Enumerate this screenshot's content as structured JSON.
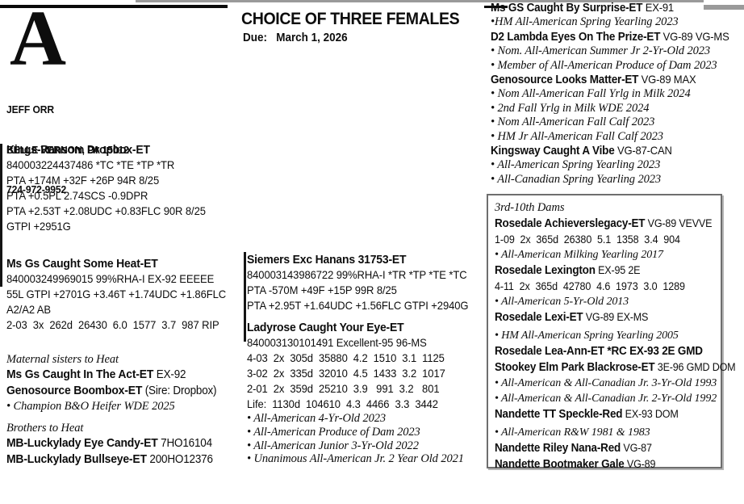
{
  "header": {
    "logo_letter": "A",
    "consignor": {
      "name": "JEFF ORR",
      "address": "BELLE VERNON, PA 15012",
      "phone": "724-972-9952"
    },
    "title": "CHOICE OF THREE FEMALES",
    "due": "Due:   March 1, 2026"
  },
  "left": {
    "sire": {
      "name": "Kings-Ransom Dropbox-ET",
      "lines": [
        "840003224437486 *TC *TE *TP *TR",
        "PTA +174M +32F +26P 94R 8/25",
        "PTA +0.5PL 2.74SCS -0.9DPR",
        "PTA +2.53T +2.08UDC +0.83FLC 90R 8/25",
        "GTPI +2951G"
      ]
    },
    "dam": {
      "name": "Ms Gs Caught Some Heat-ET",
      "lines": [
        "840003249969015 99%RHA-I EX-92 EEEEE",
        "55L GTPI +2701G +3.46T +1.74UDC +1.86FLC",
        "A2/A2 AB",
        "2-03  3x  262d  26430  6.0  1577  3.7  987 RIP"
      ]
    },
    "maternal": {
      "heading": "Maternal sisters to Heat",
      "entries": [
        {
          "name": "Ms Gs Caught In The Act-ET",
          "suffix": " EX-92"
        },
        {
          "name": "Genosource Boombox-ET",
          "suffix": " (Sire: Dropbox)"
        }
      ],
      "bullet": "• Champion B&O Heifer WDE 2025"
    },
    "brothers": {
      "heading": "Brothers to Heat",
      "entries": [
        {
          "name": "MB-Luckylady Eye Candy-ET",
          "suffix": " 7HO16104"
        },
        {
          "name": "MB-Luckylady Bullseye-ET",
          "suffix": " 200HO12376"
        }
      ]
    }
  },
  "middle": {
    "sire2": {
      "name": "Siemers Exc Hanans 31753-ET",
      "lines": [
        "840003143986722 99%RHA-I *TR *TP *TE *TC",
        "PTA -570M +49F +15P 99R 8/25",
        "PTA +2.95T +1.64UDC +1.56FLC GTPI +2940G"
      ]
    },
    "dam2": {
      "name": "Ladyrose Caught Your Eye-ET",
      "lines": [
        "840003130101491 Excellent-95 96-MS",
        "4-03  2x  305d  35880  4.2  1510  3.1  1125",
        "3-02  2x  335d  32010  4.5  1433  3.2  1017",
        "2-01  2x  359d  25210  3.9   991  3.2   801",
        "Life:  1130d  104610  4.3  4466  3.3  3442"
      ],
      "bullets": [
        "• All-American 4-Yr-Old 2023",
        "• All-American Produce of Dam 2023",
        "• All-American Junior 3-Yr-Old 2022",
        "• Unanimous All-American Jr. 2 Year Old 2021"
      ]
    }
  },
  "right": {
    "items": [
      {
        "type": "name",
        "name": "Ms GS Caught By Surprise-ET",
        "suffix": " EX-91"
      },
      {
        "type": "bullet",
        "text": "•HM All-American Spring Yearling 2023"
      },
      {
        "type": "name",
        "name": "D2 Lambda Eyes On The Prize-ET",
        "suffix": " VG-89 VG-MS"
      },
      {
        "type": "bullet",
        "text": "• Nom. All-American Summer Jr 2-Yr-Old 2023"
      },
      {
        "type": "bullet",
        "text": "• Member of All-American Produce of Dam 2023"
      },
      {
        "type": "name",
        "name": "Genosource Looks Matter-ET",
        "suffix": " VG-89 MAX"
      },
      {
        "type": "bullet",
        "text": "• Nom All-American Fall Yrlg in Milk 2024"
      },
      {
        "type": "bullet",
        "text": "• 2nd Fall Yrlg in Milk WDE 2024"
      },
      {
        "type": "bullet",
        "text": "• Nom All-American Fall Calf 2023"
      },
      {
        "type": "bullet",
        "text": "• HM Jr All-American Fall Calf 2023"
      },
      {
        "type": "name",
        "name": "Kingsway Caught A Vibe",
        "suffix": " VG-87-CAN"
      },
      {
        "type": "bullet",
        "text": "• All-American Spring Yearling 2023"
      },
      {
        "type": "bullet",
        "text": "• All-Canadian Spring Yearling 2023"
      }
    ],
    "dams_box": {
      "heading": "3rd-10th Dams",
      "items": [
        {
          "type": "name",
          "name": "Rosedale Achieverslegacy-ET",
          "suffix": " VG-89 VEVVE"
        },
        {
          "type": "data",
          "text": "1-09  2x  365d  26380  5.1  1358  3.4  904"
        },
        {
          "type": "bullet",
          "text": "• All-American Milking Yearling 2017"
        },
        {
          "type": "name",
          "name": "Rosedale Lexington",
          "suffix": " EX-95 2E"
        },
        {
          "type": "data",
          "text": "4-11  2x  365d  42780  4.6  1973  3.0  1289"
        },
        {
          "type": "bullet",
          "text": "• All-American 5-Yr-Old 2013"
        },
        {
          "type": "name",
          "name": "Rosedale Lexi-ET",
          "suffix": " VG-89 EX-MS"
        },
        {
          "type": "bullet",
          "text": "• HM All-American Spring Yearling 2005"
        },
        {
          "type": "name",
          "name": "Rosedale Lea-Ann-ET *RC EX-93 2E GMD",
          "suffix": ""
        },
        {
          "type": "name",
          "name": "Stookey Elm Park Blackrose-ET",
          "suffix": " 3E-96 GMD DOM"
        },
        {
          "type": "bullet",
          "text": "• All-American & All-Canadian Jr. 3-Yr-Old 1993"
        },
        {
          "type": "bullet",
          "text": "• All-American & All-Canadian Jr. 2-Yr-Old 1992"
        },
        {
          "type": "name",
          "name": "Nandette TT Speckle-Red",
          "suffix": " EX-93 DOM"
        },
        {
          "type": "bullet",
          "text": "• All-American R&W 1981 & 1983"
        },
        {
          "type": "name",
          "name": "Nandette Riley Nana-Red",
          "suffix": " VG-87"
        },
        {
          "type": "name",
          "name": "Nandette Bootmaker Gale",
          "suffix": " VG-89"
        }
      ]
    }
  }
}
